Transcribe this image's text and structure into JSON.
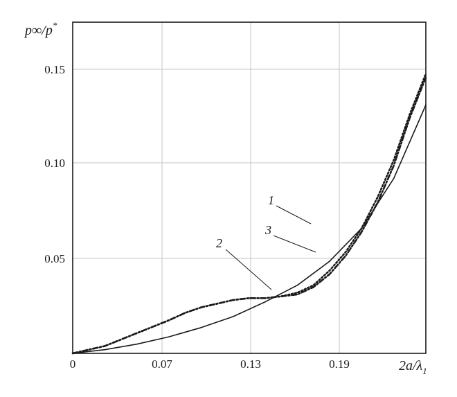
{
  "chart_data": {
    "type": "line",
    "xlabel": {
      "base": "2a/λ",
      "sub": "1"
    },
    "ylabel": {
      "base": "p∞/p",
      "sup": "*"
    },
    "x_ticks": [
      "0",
      "0.07",
      "0.13",
      "0.19"
    ],
    "y_ticks": [
      "0.05",
      "0.10",
      "0.15"
    ],
    "xlim": [
      0,
      0.22
    ],
    "ylim": [
      0,
      0.18
    ],
    "grid": true,
    "legend": "none",
    "series": [
      {
        "name": "1",
        "style": "solid",
        "x": [
          0,
          0.02,
          0.04,
          0.06,
          0.08,
          0.1,
          0.12,
          0.14,
          0.16,
          0.18,
          0.2,
          0.22
        ],
        "y": [
          0,
          0.002,
          0.005,
          0.009,
          0.014,
          0.02,
          0.028,
          0.037,
          0.05,
          0.068,
          0.095,
          0.135
        ]
      },
      {
        "name": "2",
        "style": "dash-dot",
        "x": [
          0,
          0.02,
          0.04,
          0.06,
          0.07,
          0.08,
          0.09,
          0.1,
          0.11,
          0.12,
          0.13,
          0.14,
          0.15,
          0.16,
          0.17,
          0.18,
          0.19,
          0.2,
          0.21,
          0.22
        ],
        "y": [
          0,
          0.004,
          0.011,
          0.018,
          0.022,
          0.025,
          0.027,
          0.029,
          0.03,
          0.03,
          0.031,
          0.032,
          0.036,
          0.043,
          0.053,
          0.066,
          0.082,
          0.102,
          0.128,
          0.15
        ]
      },
      {
        "name": "3",
        "style": "dotted",
        "x": [
          0,
          0.02,
          0.04,
          0.06,
          0.07,
          0.08,
          0.09,
          0.1,
          0.11,
          0.12,
          0.13,
          0.14,
          0.15,
          0.16,
          0.17,
          0.18,
          0.19,
          0.2,
          0.21,
          0.22
        ],
        "y": [
          0,
          0.004,
          0.011,
          0.018,
          0.022,
          0.025,
          0.027,
          0.029,
          0.03,
          0.03,
          0.031,
          0.033,
          0.037,
          0.045,
          0.055,
          0.068,
          0.085,
          0.105,
          0.13,
          0.152
        ]
      }
    ],
    "labels": {
      "0": "0"
    }
  },
  "style": {
    "line_color": "#1a1a1a",
    "grid_color": "#cfcfcf"
  }
}
